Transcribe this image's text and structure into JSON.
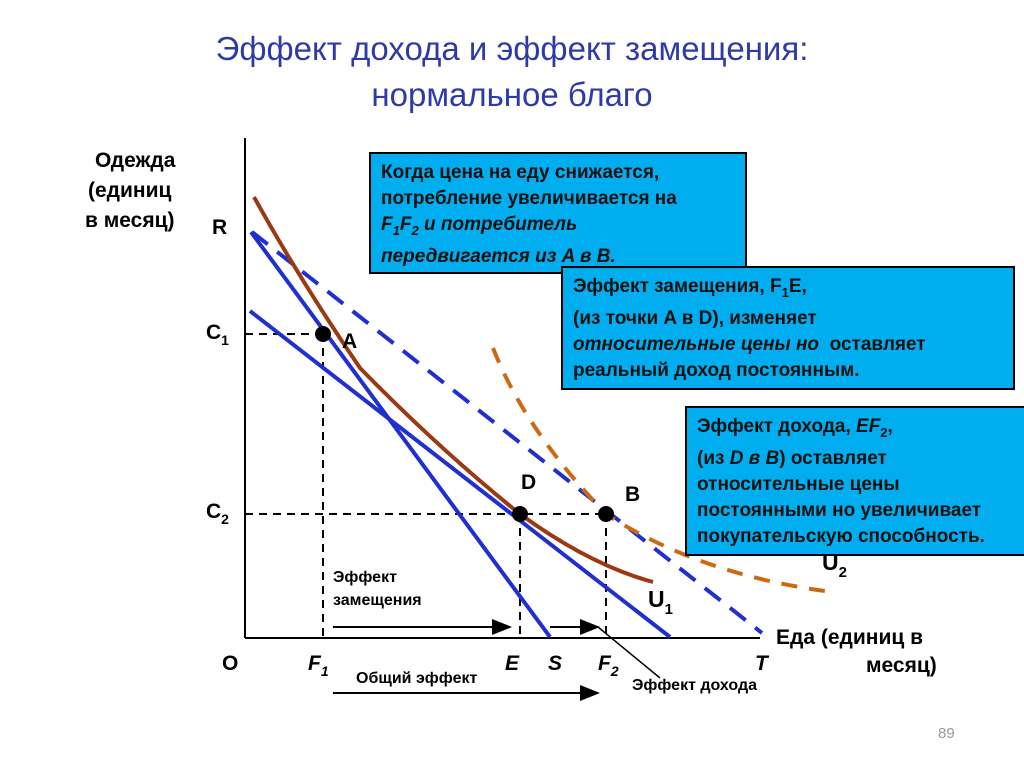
{
  "title": {
    "line1": "Эффект дохода и эффект замещения:",
    "line2": "нормальное благо"
  },
  "axes": {
    "y_label_line1": "Одежда",
    "y_label_line2": "(единиц",
    "y_label_line3": "в месяц)",
    "x_label_line1": "Еда (единиц в",
    "x_label_line2": "месяц)"
  },
  "labels": {
    "R": "R",
    "O": "O",
    "C1": "C",
    "C1_sub": "1",
    "C2": "C",
    "C2_sub": "2",
    "F1": "F",
    "F1_sub": "1",
    "F2": "F",
    "F2_sub": "2",
    "E_axis": "E",
    "S": "S",
    "T": "T",
    "A": "A",
    "D": "D",
    "B": "B",
    "U1": "U",
    "U1_sub": "1",
    "U2": "U",
    "U2_sub": "2",
    "subst_effect_line1": "Эффект",
    "subst_effect_line2": "замещения",
    "total_effect": "Общий эффект",
    "income_effect": "Эффект дохода"
  },
  "box1": {
    "line1": "Когда цена на еду снижается,",
    "line2": "потребление увеличивается на",
    "line3_a": "F",
    "line3_a_sub": "1",
    "line3_b": "F",
    "line3_b_sub": "2",
    "line3_rest": " и потребитель",
    "line4": "передвигается из A в B."
  },
  "box2": {
    "line1_a": "Эффект замещения, F",
    "line1_sub": "1",
    "line1_b": "E,",
    "line2": "(из точки A в D), изменяет",
    "line3_italic": "относительные цены но",
    "line3_rest": "  оставляет",
    "line4": "реальный доход постоянным."
  },
  "box3": {
    "line1_a": "Эффект дохода, ",
    "line1_b": "EF",
    "line1_sub": "2",
    "line1_c": ",",
    "line2_a": "(из ",
    "line2_b": "D в B",
    "line2_c": ") оставляет",
    "line3": "относительные цены",
    "line4": "постоянными но увеличивает",
    "line5": "покупательскую способность."
  },
  "page_number": "89",
  "colors": {
    "title": "#2E3AA6",
    "budget_line": "#1F2FD0",
    "indifference_curve": "#9B3A12",
    "dashed_curve": "#CC6A12",
    "box_fill": "#00AEEF"
  }
}
